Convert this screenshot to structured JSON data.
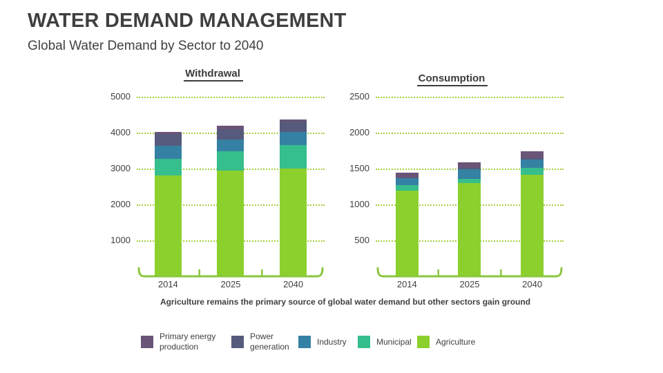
{
  "header": {
    "title": "WATER DEMAND MANAGEMENT",
    "subtitle": "Global Water Demand by Sector to 2040"
  },
  "annotation": "Agriculture remains the primary source of global water demand but other sectors gain ground",
  "colors": {
    "agriculture": "#8CD02E",
    "municipal": "#36BE8D",
    "industry": "#3581A3",
    "power_generation": "#565A7C",
    "primary_energy_production": "#6A5477",
    "gridline": "#A5CE3C",
    "axis": "#8BC63F",
    "text": "#3F3F3F"
  },
  "legend": [
    {
      "key": "primary_energy_production",
      "label": "Primary energy production"
    },
    {
      "key": "power_generation",
      "label": "Power generation"
    },
    {
      "key": "industry",
      "label": "Industry"
    },
    {
      "key": "municipal",
      "label": "Municipal"
    },
    {
      "key": "agriculture",
      "label": "Agriculture"
    }
  ],
  "chart_data": [
    {
      "type": "bar",
      "stacked": true,
      "title": "Withdrawal",
      "categories": [
        "2014",
        "2025",
        "2040"
      ],
      "ylim": [
        0,
        5000
      ],
      "yticks": [
        1000,
        2000,
        3000,
        4000,
        5000
      ],
      "grid": "dotted horizontal",
      "series": [
        {
          "name": "Agriculture",
          "key": "agriculture",
          "values": [
            2780,
            2920,
            2990
          ]
        },
        {
          "name": "Municipal",
          "key": "municipal",
          "values": [
            470,
            550,
            650
          ]
        },
        {
          "name": "Industry",
          "key": "industry",
          "values": [
            370,
            320,
            360
          ]
        },
        {
          "name": "Power generation",
          "key": "power_generation",
          "values": [
            320,
            280,
            280
          ]
        },
        {
          "name": "Primary energy production",
          "key": "primary_energy_production",
          "values": [
            60,
            100,
            70
          ]
        }
      ],
      "totals": [
        4000,
        4170,
        4350
      ]
    },
    {
      "type": "bar",
      "stacked": true,
      "title": "Consumption",
      "categories": [
        "2014",
        "2025",
        "2040"
      ],
      "ylim": [
        0,
        2500
      ],
      "yticks": [
        500,
        1000,
        1500,
        2000,
        2500
      ],
      "grid": "dotted horizontal",
      "series": [
        {
          "name": "Agriculture",
          "key": "agriculture",
          "values": [
            1180,
            1290,
            1400
          ]
        },
        {
          "name": "Municipal",
          "key": "municipal",
          "values": [
            75,
            60,
            100
          ]
        },
        {
          "name": "Industry",
          "key": "industry",
          "values": [
            100,
            135,
            120
          ]
        },
        {
          "name": "Power generation",
          "key": "power_generation",
          "values": [
            15,
            15,
            15
          ]
        },
        {
          "name": "Primary energy production",
          "key": "primary_energy_production",
          "values": [
            60,
            80,
            95
          ]
        }
      ],
      "totals": [
        1430,
        1580,
        1730
      ]
    }
  ]
}
